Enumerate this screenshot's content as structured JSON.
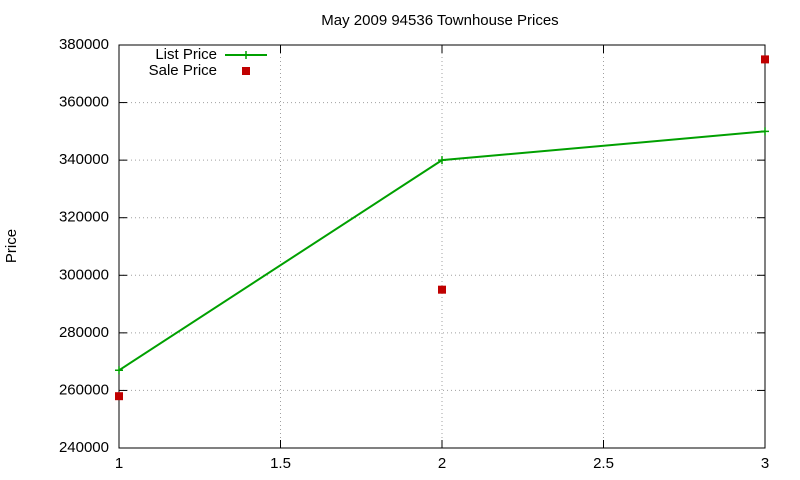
{
  "chart_data": {
    "type": "line",
    "title": "May 2009 94536 Townhouse Prices",
    "y_label": "Price",
    "x": [
      1,
      2,
      3
    ],
    "series": [
      {
        "name": "List Price",
        "color": "#00a000",
        "mode": "linespoints",
        "values": [
          267000,
          340000,
          350000
        ]
      },
      {
        "name": "Sale Price",
        "color": "#c00000",
        "mode": "points",
        "values": [
          258000,
          295000,
          375000
        ]
      }
    ],
    "xlim": [
      1,
      3
    ],
    "xticks": [
      1,
      1.5,
      2,
      2.5,
      3
    ],
    "ylim": [
      240000,
      380000
    ],
    "yticks": [
      240000,
      260000,
      280000,
      300000,
      320000,
      340000,
      360000,
      380000
    ],
    "grid": true,
    "legend": "top-left"
  }
}
